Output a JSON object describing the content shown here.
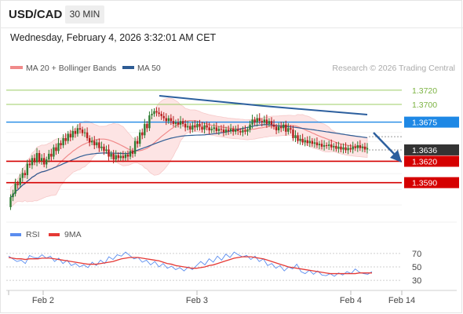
{
  "header": {
    "symbol": "USD/CAD",
    "timeframe": "30 MIN",
    "datetime": "Wednesday, February 4, 2026 3:32:01 AM CET"
  },
  "legend": {
    "ma20_bb": "MA 20 + Bollinger Bands",
    "ma50": "MA 50",
    "credit": "Research © 2026 Trading Central",
    "rsi": "RSI",
    "rsi_ma": "9MA"
  },
  "colors": {
    "up_candle": "#2e7d32",
    "down_candle": "#b71c1c",
    "bollinger_fill": "#fde4e4",
    "ma20": "#f08a8a",
    "ma50": "#2e5c94",
    "resistance": "#1e88e5",
    "target": "#7cb342",
    "support": "#d50000",
    "current": "#333333",
    "rsi": "#5b8def",
    "rsi_ma": "#e53935",
    "forecast_arrow": "#2c5f9e"
  },
  "chart_data": [
    {
      "type": "candlestick",
      "title": "USD/CAD 30 MIN",
      "x_ticks": [
        "Feb 2",
        "Feb 3",
        "Feb 4",
        "Feb 14"
      ],
      "y_range": [
        1.3535,
        1.3738
      ],
      "price_levels": [
        {
          "label": "1.3720",
          "value": 1.372,
          "kind": "target"
        },
        {
          "label": "1.3700",
          "value": 1.37,
          "kind": "target"
        },
        {
          "label": "1.3675",
          "value": 1.3675,
          "kind": "resistance"
        },
        {
          "label": "1.3636",
          "value": 1.3636,
          "kind": "current"
        },
        {
          "label": "1.3620",
          "value": 1.362,
          "kind": "support"
        },
        {
          "label": "1.3590",
          "value": 1.359,
          "kind": "support"
        }
      ],
      "closes": [
        1.3569,
        1.3574,
        1.3588,
        1.3586,
        1.3596,
        1.3603,
        1.36,
        1.3616,
        1.3614,
        1.3624,
        1.3618,
        1.3631,
        1.362,
        1.3624,
        1.3615,
        1.3622,
        1.363,
        1.3626,
        1.3639,
        1.3634,
        1.3645,
        1.3642,
        1.3652,
        1.3648,
        1.3658,
        1.3653,
        1.3662,
        1.3658,
        1.3666,
        1.3664,
        1.3659,
        1.366,
        1.3652,
        1.3646,
        1.3648,
        1.3642,
        1.3646,
        1.3638,
        1.364,
        1.3634,
        1.3636,
        1.3626,
        1.363,
        1.3622,
        1.3628,
        1.3624,
        1.3627,
        1.3624,
        1.3629,
        1.3626,
        1.3634,
        1.363,
        1.3648,
        1.3644,
        1.366,
        1.3656,
        1.3672,
        1.3666,
        1.3684,
        1.3686,
        1.369,
        1.3688,
        1.3686,
        1.3683,
        1.368,
        1.3676,
        1.368,
        1.3676,
        1.3672,
        1.3674,
        1.3671,
        1.3676,
        1.3672,
        1.3667,
        1.3669,
        1.3664,
        1.367,
        1.3667,
        1.3672,
        1.3668,
        1.3664,
        1.367,
        1.3667,
        1.3663,
        1.3665,
        1.3667,
        1.3662,
        1.3665,
        1.3664,
        1.366,
        1.3664,
        1.3662,
        1.3665,
        1.3661,
        1.3664,
        1.3662,
        1.366,
        1.3663,
        1.3661,
        1.3664,
        1.3671,
        1.3678,
        1.3674,
        1.368,
        1.3676,
        1.3674,
        1.3678,
        1.3672,
        1.3676,
        1.3671,
        1.3668,
        1.3663,
        1.3668,
        1.3666,
        1.3671,
        1.3661,
        1.3666,
        1.3664,
        1.3652,
        1.3656,
        1.3648,
        1.3651,
        1.3646,
        1.3649,
        1.3645,
        1.3648,
        1.3644,
        1.3646,
        1.3642,
        1.3644,
        1.364,
        1.3642,
        1.3641,
        1.3643,
        1.3639,
        1.3641,
        1.3637,
        1.364,
        1.3636,
        1.3639,
        1.3635,
        1.3638,
        1.3636,
        1.364,
        1.3638,
        1.3642,
        1.3638,
        1.364,
        1.3636,
        1.3638
      ],
      "ma20_end": 1.3644,
      "ma50_end": 1.3654
    },
    {
      "type": "line",
      "title": "RSI",
      "y_ticks": [
        70,
        50,
        30
      ],
      "y_range": [
        15,
        85
      ],
      "series": [
        {
          "name": "RSI",
          "values": [
            66,
            62,
            58,
            60,
            55,
            67,
            64,
            63,
            68,
            63,
            66,
            58,
            63,
            55,
            60,
            52,
            55,
            50,
            53,
            49,
            57,
            52,
            60,
            55,
            65,
            61,
            68,
            66,
            72,
            67,
            62,
            64,
            57,
            60,
            53,
            58,
            50,
            55,
            48,
            51,
            46,
            49,
            44,
            50,
            46,
            52,
            58,
            53,
            62,
            57,
            66,
            60,
            69,
            64,
            72,
            68,
            65,
            67,
            61,
            66,
            58,
            62,
            52,
            55,
            48,
            52,
            44,
            50,
            47,
            54,
            43,
            40,
            45,
            39,
            44,
            38,
            37,
            40,
            36,
            41,
            38,
            43,
            40,
            47,
            42,
            40,
            39,
            43
          ]
        },
        {
          "name": "9MA",
          "values": [
            64,
            63,
            62,
            62,
            61,
            62,
            62,
            62,
            63,
            63,
            63,
            62,
            61,
            60,
            59,
            58,
            57,
            56,
            55,
            54,
            54,
            54,
            55,
            56,
            57,
            58,
            60,
            62,
            63,
            64,
            64,
            64,
            63,
            62,
            61,
            60,
            59,
            57,
            55,
            54,
            52,
            51,
            50,
            49,
            48,
            48,
            49,
            50,
            52,
            53,
            55,
            57,
            59,
            61,
            63,
            64,
            65,
            65,
            65,
            64,
            63,
            62,
            60,
            58,
            56,
            54,
            52,
            50,
            49,
            48,
            47,
            46,
            45,
            44,
            43,
            42,
            41,
            40,
            40,
            40,
            40,
            40,
            40,
            40,
            41,
            41,
            41,
            41
          ]
        }
      ]
    }
  ]
}
